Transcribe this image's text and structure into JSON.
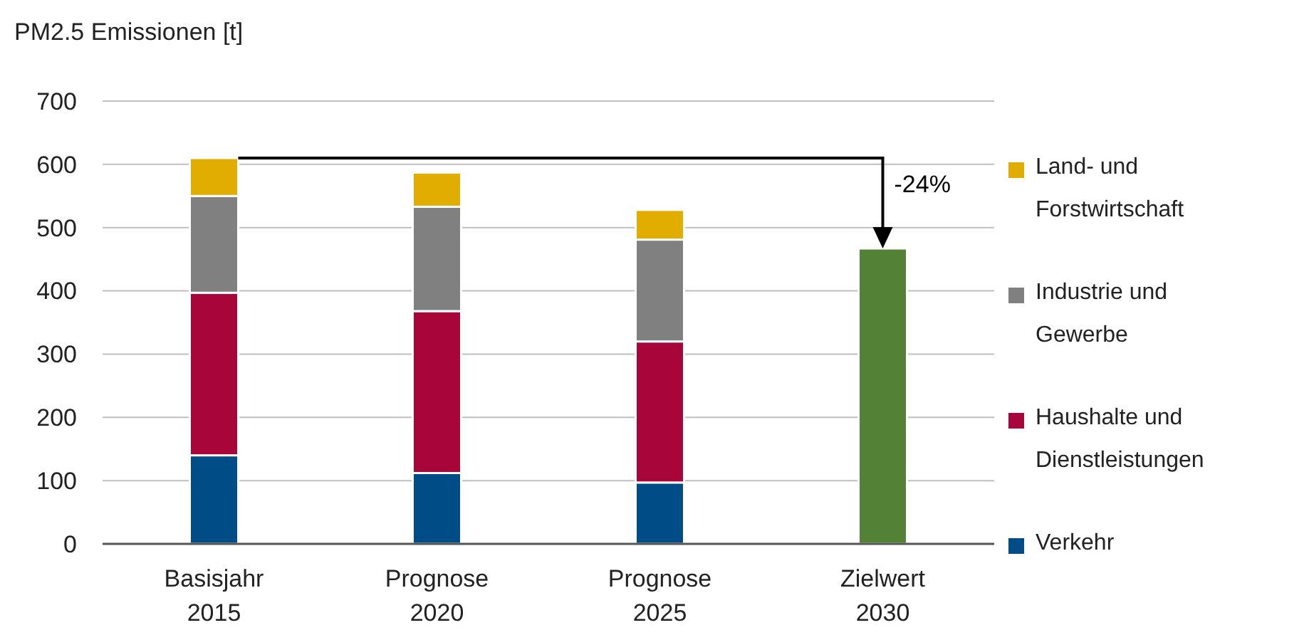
{
  "chart_data": {
    "type": "bar",
    "stacked": true,
    "ylabel": "PM2.5 Emissionen [t]",
    "categories": [
      "Basisjahr 2015",
      "Prognose 2020",
      "Prognose 2025",
      "Zielwert 2030"
    ],
    "series": [
      {
        "name": "Verkehr",
        "color": "#004c86",
        "values": [
          140,
          112,
          97,
          null
        ]
      },
      {
        "name": "Haushalte und Dienstleistungen",
        "color": "#a8063a",
        "values": [
          257,
          256,
          223,
          null
        ]
      },
      {
        "name": "Industrie und Gewerbe",
        "color": "#808080",
        "values": [
          153,
          165,
          161,
          null
        ]
      },
      {
        "name": "Land- und Forstwirtschaft",
        "color": "#e0ad00",
        "values": [
          60,
          54,
          47,
          null
        ]
      },
      {
        "color": "#538135",
        "values": [
          null,
          null,
          null,
          467
        ]
      }
    ],
    "ylim": [
      0,
      700
    ],
    "yticks": [
      0,
      100,
      200,
      300,
      400,
      500,
      600,
      700
    ],
    "grid": "y",
    "legend": "right",
    "annotations": [
      {
        "text": "-24%",
        "x": "Zielwert 2030",
        "y": 467
      }
    ]
  }
}
